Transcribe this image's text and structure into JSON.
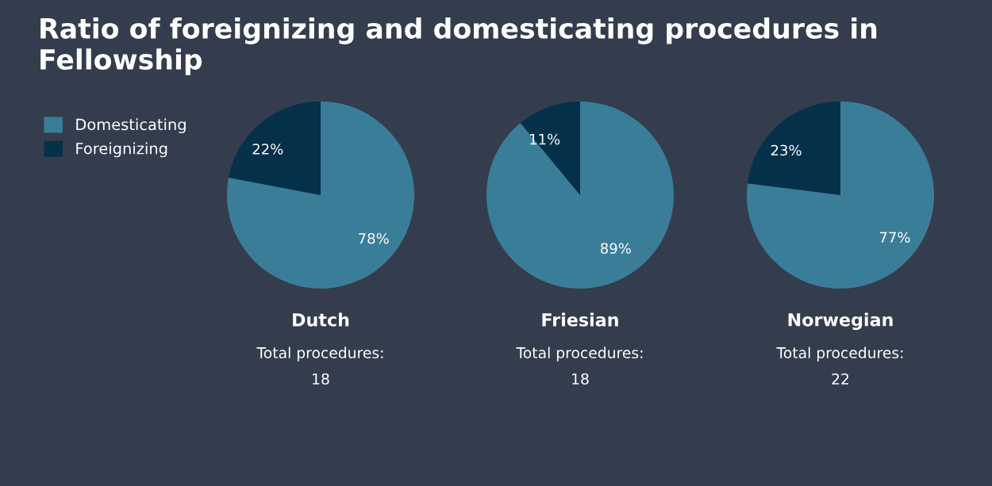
{
  "chart_data": [
    {
      "type": "other",
      "title": "Ratio of foreignizing and domesticating procedures in Fellowship"
    },
    {
      "type": "pie",
      "title": "Dutch",
      "categories": [
        "Domesticating",
        "Foreignizing"
      ],
      "values": [
        78,
        22
      ],
      "colors": [
        "#3a7d99",
        "#05304a"
      ],
      "value_labels": [
        "78%",
        "22%"
      ],
      "annotations": [
        "Total procedures:",
        "18"
      ],
      "legend": "top left"
    },
    {
      "type": "pie",
      "title": "Friesian",
      "values": [
        89,
        11
      ],
      "colors": [
        "#3a7d99",
        "#05304a"
      ],
      "value_labels": [
        "89%",
        "11%"
      ],
      "annotations": [
        "Total procedures:",
        "18"
      ]
    },
    {
      "type": "pie",
      "title": "Norwegian",
      "values": [
        77,
        23
      ],
      "colors": [
        "#3a7d99",
        "#05304a"
      ],
      "value_labels": [
        "77%",
        "23%"
      ],
      "annotations": [
        "Total procedures:",
        "22"
      ]
    }
  ]
}
